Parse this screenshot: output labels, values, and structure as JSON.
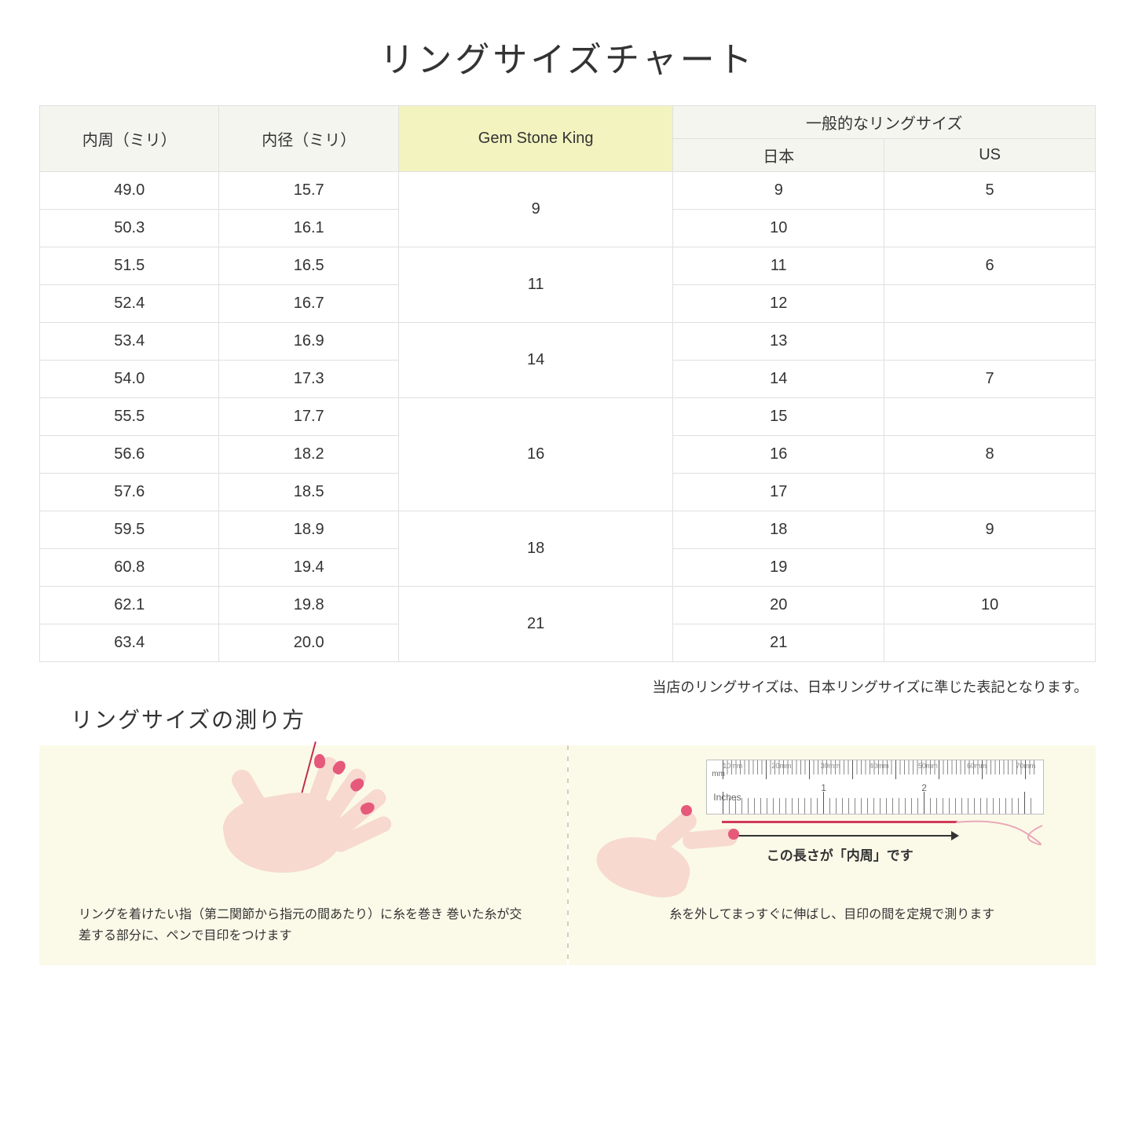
{
  "title": "リングサイズチャート",
  "table": {
    "headers": {
      "col1": "内周（ミリ）",
      "col2": "内径（ミリ）",
      "col3": "Gem Stone King",
      "col4_group": "一般的なリングサイズ",
      "col4a": "日本",
      "col4b": "US"
    },
    "groups": [
      {
        "gsk": "9",
        "rows": [
          {
            "circum": "49.0",
            "diam": "15.7",
            "jp": "9",
            "us": "5"
          },
          {
            "circum": "50.3",
            "diam": "16.1",
            "jp": "10",
            "us": ""
          }
        ]
      },
      {
        "gsk": "11",
        "rows": [
          {
            "circum": "51.5",
            "diam": "16.5",
            "jp": "11",
            "us": "6"
          },
          {
            "circum": "52.4",
            "diam": "16.7",
            "jp": "12",
            "us": ""
          }
        ]
      },
      {
        "gsk": "14",
        "rows": [
          {
            "circum": "53.4",
            "diam": "16.9",
            "jp": "13",
            "us": ""
          },
          {
            "circum": "54.0",
            "diam": "17.3",
            "jp": "14",
            "us": "7"
          }
        ]
      },
      {
        "gsk": "16",
        "rows": [
          {
            "circum": "55.5",
            "diam": "17.7",
            "jp": "15",
            "us": ""
          },
          {
            "circum": "56.6",
            "diam": "18.2",
            "jp": "16",
            "us": "8"
          },
          {
            "circum": "57.6",
            "diam": "18.5",
            "jp": "17",
            "us": ""
          }
        ]
      },
      {
        "gsk": "18",
        "rows": [
          {
            "circum": "59.5",
            "diam": "18.9",
            "jp": "18",
            "us": "9"
          },
          {
            "circum": "60.8",
            "diam": "19.4",
            "jp": "19",
            "us": ""
          }
        ]
      },
      {
        "gsk": "21",
        "rows": [
          {
            "circum": "62.1",
            "diam": "19.8",
            "jp": "20",
            "us": "10"
          },
          {
            "circum": "63.4",
            "diam": "20.0",
            "jp": "21",
            "us": ""
          }
        ]
      }
    ]
  },
  "note": "当店のリングサイズは、日本リングサイズに準じた表記となります。",
  "subtitle": "リングサイズの測り方",
  "panel1": {
    "text": "リングを着けたい指（第二関節から指元の間あたり）に糸を巻き\n巻いた糸が交差する部分に、ペンで目印をつけます"
  },
  "panel2": {
    "ruler_mm_labels": [
      "10mm",
      "20mm",
      "30mm",
      "40mm",
      "50mm",
      "60mm",
      "70mm"
    ],
    "ruler_mm_unit": "mm",
    "ruler_in_unit": "Inches",
    "ruler_in_1": "1",
    "ruler_in_2": "2",
    "arrow_label": "この長さが「内周」です",
    "text": "糸を外してまっすぐに伸ばし、目印の間を定規で測ります"
  },
  "colors": {
    "highlight_bg": "#f3f3c0",
    "header_bg": "#f5f5f0",
    "border": "#e0e0e0",
    "panel_bg": "#fbfae9",
    "skin": "#f7d9d0",
    "nail": "#e6597b",
    "thread": "#d13a58"
  }
}
